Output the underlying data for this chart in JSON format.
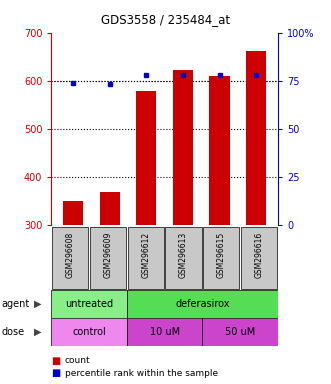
{
  "title": "GDS3558 / 235484_at",
  "samples": [
    "GSM296608",
    "GSM296609",
    "GSM296612",
    "GSM296613",
    "GSM296615",
    "GSM296616"
  ],
  "counts": [
    350,
    368,
    578,
    622,
    610,
    662
  ],
  "percentiles": [
    74,
    73,
    78,
    78,
    78,
    78
  ],
  "left_ylim": [
    300,
    700
  ],
  "left_yticks": [
    300,
    400,
    500,
    600,
    700
  ],
  "right_ylim": [
    0,
    100
  ],
  "right_yticks": [
    0,
    25,
    50,
    75,
    100
  ],
  "right_yticklabels": [
    "0",
    "25",
    "50",
    "75",
    "100%"
  ],
  "bar_color": "#cc0000",
  "dot_color": "#0000cc",
  "agent_groups": [
    {
      "label": "untreated",
      "cols": [
        0,
        1
      ],
      "color": "#88ee88"
    },
    {
      "label": "deferasirox",
      "cols": [
        2,
        3,
        4,
        5
      ],
      "color": "#55dd55"
    }
  ],
  "dose_groups": [
    {
      "label": "control",
      "cols": [
        0,
        1
      ],
      "color": "#ee88ee"
    },
    {
      "label": "10 uM",
      "cols": [
        2,
        3
      ],
      "color": "#dd55dd"
    },
    {
      "label": "50 uM",
      "cols": [
        4,
        5
      ],
      "color": "#dd55dd"
    }
  ],
  "legend_count_color": "#cc0000",
  "legend_dot_color": "#0000cc",
  "left_yaxis_color": "#cc0000",
  "right_yaxis_color": "#0000cc",
  "tick_area_bg": "#c8c8c8"
}
